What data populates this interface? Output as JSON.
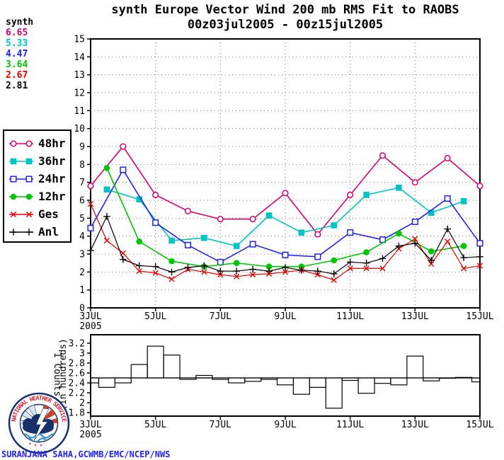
{
  "title": {
    "line1": "synth Europe Vector Wind 200 mb RMS Fit to RAOBS",
    "line2": "00z03jul2005 - 00z15jul2005"
  },
  "stats_panel": {
    "label": "synth",
    "values": [
      {
        "text": "6.65",
        "color": "#d40070"
      },
      {
        "text": "5.33",
        "color": "#00c3c3"
      },
      {
        "text": "4.47",
        "color": "#2222ee"
      },
      {
        "text": "3.64",
        "color": "#00c400"
      },
      {
        "text": "2.67",
        "color": "#e00000"
      },
      {
        "text": "2.81",
        "color": "#000000"
      }
    ]
  },
  "legend": {
    "items": [
      {
        "label": "48hr",
        "color": "#d40070",
        "marker": "circle-open"
      },
      {
        "label": "36hr",
        "color": "#00c3c3",
        "marker": "square-fill"
      },
      {
        "label": "24hr",
        "color": "#2222ee",
        "marker": "square-open"
      },
      {
        "label": "12hr",
        "color": "#00c400",
        "marker": "circle-fill"
      },
      {
        "label": "Ges",
        "color": "#e00000",
        "marker": "x"
      },
      {
        "label": "Anl",
        "color": "#000000",
        "marker": "plus"
      }
    ]
  },
  "credit": "SURANJANA SAHA,GCWMB/EMC/NCEP/NWS",
  "logo": {
    "ring_text": "NATIONAL WEATHER SERVICE",
    "stars": "★ ★ ★"
  },
  "chart_data": [
    {
      "type": "line",
      "title": "synth Europe Vector Wind 200 mb RMS Fit to RAOBS 00z03jul2005 - 00z15jul2005",
      "x_note": "x = days since 00z 3 Jul 2005 (12-hourly where step 0.5)",
      "xlim": [
        0,
        12
      ],
      "ylim": [
        0,
        15
      ],
      "y_ticks": [
        0,
        1,
        2,
        3,
        4,
        5,
        6,
        7,
        8,
        9,
        10,
        11,
        12,
        13,
        14,
        15
      ],
      "x_ticks": [
        {
          "day": 0,
          "label": "3JUL",
          "year": "2005"
        },
        {
          "day": 2,
          "label": "5JUL"
        },
        {
          "day": 4,
          "label": "7JUL"
        },
        {
          "day": 6,
          "label": "9JUL"
        },
        {
          "day": 8,
          "label": "11JUL"
        },
        {
          "day": 10,
          "label": "13JUL"
        },
        {
          "day": 12,
          "label": "15JUL"
        }
      ],
      "x_grid_days": [
        2,
        4,
        6,
        8,
        10
      ],
      "grid": "dotted",
      "legend_position": "outside-left",
      "series": [
        {
          "name": "48hr",
          "color": "#d40070",
          "marker": "circle-open",
          "width": 1.6,
          "x": [
            0,
            1,
            2,
            3,
            4,
            5,
            6,
            7,
            8,
            9,
            10,
            11,
            12
          ],
          "values": [
            6.8,
            9.0,
            6.3,
            5.4,
            4.95,
            4.95,
            6.4,
            4.1,
            6.3,
            8.5,
            7.0,
            8.35,
            6.8
          ]
        },
        {
          "name": "36hr",
          "color": "#00c3c3",
          "marker": "square-fill",
          "width": 1.6,
          "x": [
            0.5,
            1.5,
            2.5,
            3.5,
            4.5,
            5.5,
            6.5,
            7.5,
            8.5,
            9.5,
            10.5,
            11.5
          ],
          "values": [
            6.6,
            6.05,
            3.75,
            3.9,
            3.45,
            5.15,
            4.2,
            4.6,
            6.3,
            6.7,
            5.3,
            5.95
          ]
        },
        {
          "name": "24hr",
          "color": "#2222ee",
          "marker": "square-open",
          "width": 1.6,
          "x": [
            0,
            1,
            2,
            3,
            4,
            5,
            6,
            7,
            8,
            9,
            10,
            11,
            12
          ],
          "values": [
            4.45,
            7.7,
            4.75,
            3.5,
            2.55,
            3.55,
            2.95,
            2.85,
            4.2,
            3.8,
            4.8,
            6.1,
            3.6
          ]
        },
        {
          "name": "12hr",
          "color": "#00c400",
          "marker": "circle-fill",
          "width": 1.6,
          "x": [
            0.5,
            1.5,
            2.5,
            3.5,
            4.5,
            5.5,
            6.5,
            7.5,
            8.5,
            9.5,
            10.5,
            11.5
          ],
          "values": [
            7.8,
            3.7,
            2.6,
            2.3,
            2.5,
            2.3,
            2.3,
            2.65,
            3.1,
            4.15,
            3.15,
            3.45
          ]
        },
        {
          "name": "Ges",
          "color": "#e00000",
          "marker": "x",
          "width": 1.2,
          "x": [
            0,
            0.5,
            1,
            1.5,
            2,
            2.5,
            3,
            3.5,
            4,
            4.5,
            5,
            5.5,
            6,
            6.5,
            7,
            7.5,
            8,
            8.5,
            9,
            9.5,
            10,
            10.5,
            11,
            11.5,
            12
          ],
          "values": [
            5.8,
            3.75,
            3.05,
            2.05,
            1.95,
            1.6,
            2.15,
            2.0,
            1.85,
            1.75,
            1.85,
            1.9,
            2.0,
            2.1,
            1.85,
            1.55,
            2.2,
            2.2,
            2.2,
            3.3,
            3.85,
            2.45,
            3.7,
            2.2,
            2.35
          ]
        },
        {
          "name": "Anl",
          "color": "#000000",
          "marker": "plus",
          "width": 1.2,
          "x": [
            0,
            0.5,
            1,
            1.5,
            2,
            2.5,
            3,
            3.5,
            4,
            4.5,
            5,
            5.5,
            6,
            6.5,
            7,
            7.5,
            8,
            8.5,
            9,
            9.5,
            10,
            10.5,
            11,
            11.5,
            12
          ],
          "values": [
            3.2,
            5.1,
            2.7,
            2.35,
            2.3,
            2.0,
            2.25,
            2.35,
            2.05,
            2.05,
            2.15,
            2.05,
            2.25,
            2.1,
            2.05,
            1.9,
            2.55,
            2.5,
            2.75,
            3.45,
            3.6,
            2.65,
            4.4,
            2.8,
            2.85
          ]
        }
      ]
    },
    {
      "type": "step-bar",
      "ylabel_line1": "1 Counts",
      "ylabel_line2": "(in hundreds)",
      "baseline": 2.5,
      "xlim": [
        0,
        12
      ],
      "ylim": [
        1.73,
        3.37
      ],
      "y_ticks": [
        {
          "v": 1.8,
          "label": "1.8"
        },
        {
          "v": 2.0,
          "label": "2"
        },
        {
          "v": 2.2,
          "label": "2.2"
        },
        {
          "v": 2.4,
          "label": "2.4"
        },
        {
          "v": 2.6,
          "label": "2.6"
        },
        {
          "v": 2.8,
          "label": "2.8"
        },
        {
          "v": 3.0,
          "label": "3"
        },
        {
          "v": 3.2,
          "label": "3.2"
        }
      ],
      "x_ticks": [
        {
          "day": 0,
          "label": "3JUL",
          "year": "2005"
        },
        {
          "day": 2,
          "label": "5JUL"
        },
        {
          "day": 4,
          "label": "7JUL"
        },
        {
          "day": 6,
          "label": "9JUL"
        },
        {
          "day": 8,
          "label": "11JUL"
        },
        {
          "day": 10,
          "label": "13JUL"
        },
        {
          "day": 12,
          "label": "15JUL"
        }
      ],
      "x": [
        0,
        0.5,
        1,
        1.5,
        2,
        2.5,
        3,
        3.5,
        4,
        4.5,
        5,
        5.5,
        6,
        6.5,
        7,
        7.5,
        8,
        8.5,
        9,
        9.5,
        10,
        10.5,
        11,
        11.5,
        12
      ],
      "values": [
        2.4,
        2.31,
        2.4,
        2.77,
        3.14,
        2.96,
        2.47,
        2.55,
        2.47,
        2.4,
        2.43,
        2.47,
        2.36,
        2.17,
        2.31,
        1.89,
        2.45,
        2.19,
        2.39,
        2.36,
        2.94,
        2.44,
        2.5,
        2.51,
        2.42
      ]
    }
  ]
}
